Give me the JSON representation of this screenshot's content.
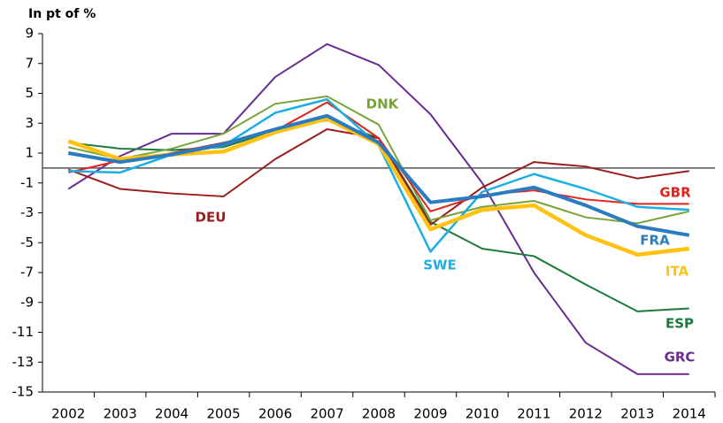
{
  "chart_data": {
    "type": "line",
    "y_label": "In pt of %",
    "categories": [
      "2002",
      "2003",
      "2004",
      "2005",
      "2006",
      "2007",
      "2008",
      "2009",
      "2010",
      "2011",
      "2012",
      "2013",
      "2014"
    ],
    "ylim": [
      -15,
      9
    ],
    "yticks": [
      9,
      7,
      5,
      3,
      1,
      -1,
      -3,
      -5,
      -7,
      -9,
      -11,
      -13,
      -15
    ],
    "zero_line": true,
    "grid": false,
    "series": [
      {
        "name": "GRC",
        "color": "#6a2c91",
        "values": [
          -1.4,
          0.8,
          2.3,
          2.3,
          6.1,
          8.3,
          6.9,
          3.6,
          -1.0,
          -7.0,
          -11.7,
          -13.8,
          -13.8
        ]
      },
      {
        "name": "ESP",
        "color": "#1a7a3a",
        "values": [
          1.7,
          1.3,
          1.2,
          1.4,
          2.5,
          3.2,
          2.0,
          -3.6,
          -5.4,
          -5.9,
          -7.8,
          -9.6,
          -9.4
        ]
      },
      {
        "name": "DEU",
        "color": "#9b1c1c",
        "values": [
          -0.1,
          -1.4,
          -1.7,
          -1.9,
          0.6,
          2.6,
          2.0,
          -3.8,
          -1.3,
          0.4,
          0.1,
          -0.7,
          -0.2
        ]
      },
      {
        "name": "DNK",
        "color": "#77a33a",
        "values": [
          1.4,
          0.6,
          1.3,
          2.3,
          4.3,
          4.8,
          2.9,
          -3.5,
          -2.6,
          -2.2,
          -3.3,
          -3.7,
          -2.9
        ]
      },
      {
        "name": "GBR",
        "color": "#e2231a",
        "values": [
          -0.3,
          0.5,
          1.0,
          1.7,
          2.5,
          4.4,
          2.0,
          -2.9,
          -1.8,
          -1.5,
          -2.1,
          -2.4,
          -2.4
        ]
      },
      {
        "name": "SWE",
        "color": "#1aaee5",
        "values": [
          -0.2,
          -0.3,
          0.9,
          1.5,
          3.7,
          4.6,
          1.5,
          -5.6,
          -1.6,
          -0.4,
          -1.4,
          -2.6,
          -2.8
        ]
      },
      {
        "name": "ITA",
        "color": "#ffc20e",
        "values": [
          1.8,
          0.6,
          0.9,
          1.1,
          2.4,
          3.3,
          1.6,
          -4.1,
          -2.8,
          -2.5,
          -4.5,
          -5.8,
          -5.4
        ]
      },
      {
        "name": "FRA",
        "color": "#2b7bc0",
        "values": [
          1.0,
          0.4,
          0.9,
          1.6,
          2.6,
          3.5,
          1.7,
          -2.3,
          -1.9,
          -1.3,
          -2.5,
          -3.9,
          -4.5
        ]
      }
    ]
  }
}
